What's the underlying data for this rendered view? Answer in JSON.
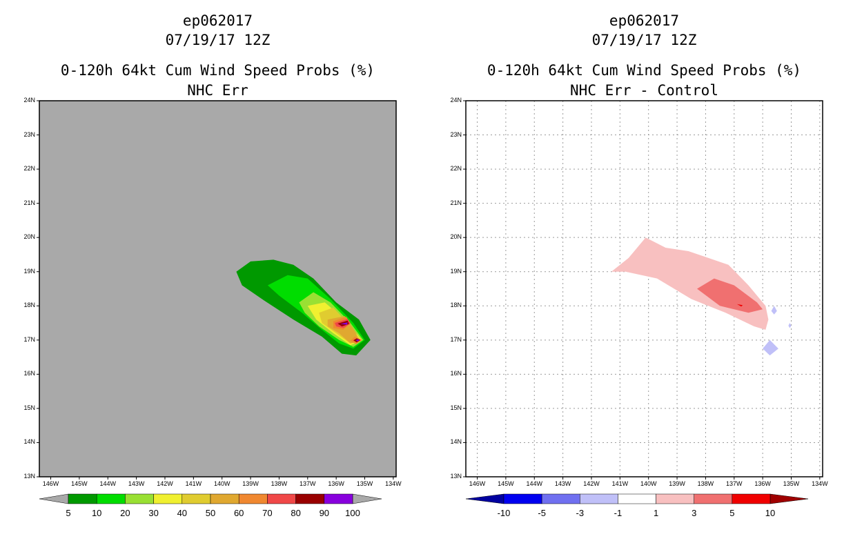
{
  "chart_data": [
    {
      "type": "heatmap",
      "storm_id": "ep062017",
      "datetime": "07/19/17 12Z",
      "title": "0-120h 64kt Cum Wind Speed Probs (%)",
      "subtitle": "NHC Err",
      "lat_ticks": [
        "24N",
        "23N",
        "22N",
        "21N",
        "20N",
        "19N",
        "18N",
        "17N",
        "16N",
        "15N",
        "14N",
        "13N"
      ],
      "lon_ticks": [
        "146W",
        "145W",
        "144W",
        "143W",
        "142W",
        "141W",
        "140W",
        "139W",
        "138W",
        "137W",
        "136W",
        "135W",
        "134W"
      ],
      "lat_range": [
        13,
        24
      ],
      "lon_range": [
        -146.4,
        -133.9
      ],
      "grid": false,
      "background_color": "#a9a9a9",
      "colorbar": {
        "labels": [
          "5",
          "10",
          "20",
          "30",
          "40",
          "50",
          "60",
          "70",
          "80",
          "90",
          "100"
        ],
        "colors": [
          "#009900",
          "#00dd00",
          "#99e033",
          "#f0f030",
          "#e0cc30",
          "#e0a830",
          "#f08830",
          "#f04848",
          "#990000",
          "#8800dd"
        ]
      },
      "contours": [
        {
          "level": 5,
          "color": "#009900",
          "points": [
            [
              -139.5,
              19
            ],
            [
              -139,
              19.3
            ],
            [
              -138.2,
              19.35
            ],
            [
              -137.5,
              19.2
            ],
            [
              -136.8,
              18.8
            ],
            [
              -136,
              18.1
            ],
            [
              -135.2,
              17.6
            ],
            [
              -134.8,
              17.0
            ],
            [
              -135.3,
              16.55
            ],
            [
              -135.8,
              16.6
            ],
            [
              -136.5,
              17.1
            ],
            [
              -137.5,
              17.6
            ],
            [
              -138.6,
              18.2
            ],
            [
              -139.3,
              18.6
            ]
          ]
        },
        {
          "level": 10,
          "color": "#00dd00",
          "points": [
            [
              -138.4,
              18.6
            ],
            [
              -137.7,
              18.9
            ],
            [
              -137,
              18.8
            ],
            [
              -136.2,
              18.2
            ],
            [
              -135.4,
              17.5
            ],
            [
              -135.0,
              17.0
            ],
            [
              -135.4,
              16.75
            ],
            [
              -135.9,
              16.9
            ],
            [
              -136.5,
              17.3
            ],
            [
              -137.2,
              17.8
            ],
            [
              -138.0,
              18.3
            ]
          ]
        },
        {
          "level": 20,
          "color": "#99e033",
          "points": [
            [
              -137.3,
              18.1
            ],
            [
              -136.8,
              18.4
            ],
            [
              -136.2,
              18.1
            ],
            [
              -135.5,
              17.5
            ],
            [
              -135.05,
              17.0
            ],
            [
              -135.4,
              16.8
            ],
            [
              -135.9,
              17.0
            ],
            [
              -136.6,
              17.4
            ],
            [
              -137.1,
              17.8
            ]
          ]
        },
        {
          "level": 30,
          "color": "#f0f030",
          "points": [
            [
              -137.0,
              18.0
            ],
            [
              -136.4,
              18.1
            ],
            [
              -135.7,
              17.6
            ],
            [
              -135.1,
              17.0
            ],
            [
              -135.5,
              16.85
            ],
            [
              -136.1,
              17.2
            ],
            [
              -136.7,
              17.6
            ]
          ]
        },
        {
          "level": 40,
          "color": "#e0cc30",
          "points": [
            [
              -136.6,
              17.8
            ],
            [
              -136.1,
              17.95
            ],
            [
              -135.5,
              17.4
            ],
            [
              -135.15,
              17.0
            ],
            [
              -135.5,
              16.9
            ],
            [
              -136.0,
              17.2
            ],
            [
              -136.5,
              17.5
            ]
          ]
        },
        {
          "level": 50,
          "color": "#e0a830",
          "points": [
            [
              -136.3,
              17.6
            ],
            [
              -135.7,
              17.7
            ],
            [
              -135.3,
              17.2
            ],
            [
              -135.2,
              16.95
            ],
            [
              -135.5,
              16.9
            ],
            [
              -135.9,
              17.2
            ],
            [
              -136.3,
              17.4
            ]
          ]
        },
        {
          "level": 60,
          "color": "#f08830",
          "points": [
            [
              -136.1,
              17.55
            ],
            [
              -135.65,
              17.68
            ],
            [
              -135.5,
              17.5
            ],
            [
              -135.75,
              17.3
            ],
            [
              -136.1,
              17.35
            ]
          ]
        },
        {
          "level": 70,
          "color": "#f04848",
          "points": [
            [
              -136.05,
              17.5
            ],
            [
              -135.6,
              17.62
            ],
            [
              -135.5,
              17.48
            ],
            [
              -135.75,
              17.35
            ],
            [
              -136.0,
              17.4
            ]
          ]
        },
        {
          "level": 80,
          "color": "#990000",
          "points": [
            [
              -135.95,
              17.48
            ],
            [
              -135.6,
              17.57
            ],
            [
              -135.55,
              17.47
            ],
            [
              -135.8,
              17.4
            ]
          ]
        },
        {
          "level": 90,
          "color": "#8800dd",
          "points": [
            [
              -135.85,
              17.47
            ],
            [
              -135.6,
              17.52
            ],
            [
              -135.62,
              17.45
            ]
          ]
        },
        {
          "level": 60,
          "color": "#f08830",
          "points": [
            [
              -135.35,
              17.1
            ],
            [
              -135.1,
              17.0
            ],
            [
              -135.3,
              16.88
            ],
            [
              -135.5,
              16.98
            ]
          ]
        },
        {
          "level": 80,
          "color": "#990000",
          "points": [
            [
              -135.28,
              17.05
            ],
            [
              -135.15,
              17.0
            ],
            [
              -135.28,
              16.93
            ],
            [
              -135.4,
              16.99
            ]
          ]
        },
        {
          "level": 90,
          "color": "#8800dd",
          "points": [
            [
              -135.25,
              17.02
            ],
            [
              -135.18,
              17.0
            ],
            [
              -135.25,
              16.96
            ],
            [
              -135.32,
              16.99
            ]
          ]
        }
      ]
    },
    {
      "type": "heatmap",
      "storm_id": "ep062017",
      "datetime": "07/19/17 12Z",
      "title": "0-120h 64kt Cum Wind Speed Probs (%)",
      "subtitle": "NHC Err - Control",
      "lat_ticks": [
        "24N",
        "23N",
        "22N",
        "21N",
        "20N",
        "19N",
        "18N",
        "17N",
        "16N",
        "15N",
        "14N",
        "13N"
      ],
      "lon_ticks": [
        "146W",
        "145W",
        "144W",
        "143W",
        "142W",
        "141W",
        "140W",
        "139W",
        "138W",
        "137W",
        "136W",
        "135W",
        "134W"
      ],
      "lat_range": [
        13,
        24
      ],
      "lon_range": [
        -146.4,
        -133.9
      ],
      "grid": true,
      "background_color": "#ffffff",
      "colorbar": {
        "labels": [
          "-10",
          "-5",
          "-3",
          "-1",
          "1",
          "3",
          "5",
          "10"
        ],
        "colors": [
          "#0000a0",
          "#0000f0",
          "#7070f0",
          "#c0c0f8",
          "#ffffff",
          "#f8c0c0",
          "#f07070",
          "#f00000",
          "#a00000"
        ]
      },
      "contours": [
        {
          "level": 1,
          "color": "#f8c0c0",
          "points": [
            [
              -141.3,
              19.0
            ],
            [
              -140.7,
              19.4
            ],
            [
              -140.1,
              20.0
            ],
            [
              -139.4,
              19.7
            ],
            [
              -138.6,
              19.6
            ],
            [
              -137.9,
              19.4
            ],
            [
              -137.2,
              19.2
            ],
            [
              -136.5,
              18.6
            ],
            [
              -135.9,
              18.0
            ],
            [
              -135.8,
              17.6
            ],
            [
              -135.9,
              17.3
            ],
            [
              -136.3,
              17.4
            ],
            [
              -137.3,
              17.8
            ],
            [
              -138.5,
              18.2
            ],
            [
              -139.7,
              18.8
            ],
            [
              -140.8,
              19.0
            ]
          ]
        },
        {
          "level": 3,
          "color": "#f07070",
          "points": [
            [
              -138.3,
              18.5
            ],
            [
              -137.7,
              18.8
            ],
            [
              -137.0,
              18.6
            ],
            [
              -136.2,
              18.1
            ],
            [
              -136.0,
              17.9
            ],
            [
              -136.5,
              17.8
            ],
            [
              -137.5,
              18.0
            ]
          ]
        },
        {
          "level": 5,
          "color": "#f00000",
          "points": [
            [
              -136.9,
              18.05
            ],
            [
              -136.7,
              18.02
            ],
            [
              -136.75,
              17.98
            ]
          ]
        },
        {
          "level": -1,
          "color": "#c0c0f8",
          "points": [
            [
              -135.6,
              18.0
            ],
            [
              -135.5,
              17.85
            ],
            [
              -135.6,
              17.75
            ],
            [
              -135.7,
              17.85
            ]
          ]
        },
        {
          "level": -1,
          "color": "#c0c0f8",
          "points": [
            [
              -135.05,
              17.5
            ],
            [
              -135.0,
              17.42
            ],
            [
              -135.05,
              17.35
            ],
            [
              -135.1,
              17.42
            ]
          ]
        },
        {
          "level": -1,
          "color": "#c0c0f8",
          "points": [
            [
              -135.75,
              17.0
            ],
            [
              -135.45,
              16.75
            ],
            [
              -135.75,
              16.55
            ],
            [
              -136.0,
              16.75
            ]
          ]
        }
      ]
    }
  ]
}
